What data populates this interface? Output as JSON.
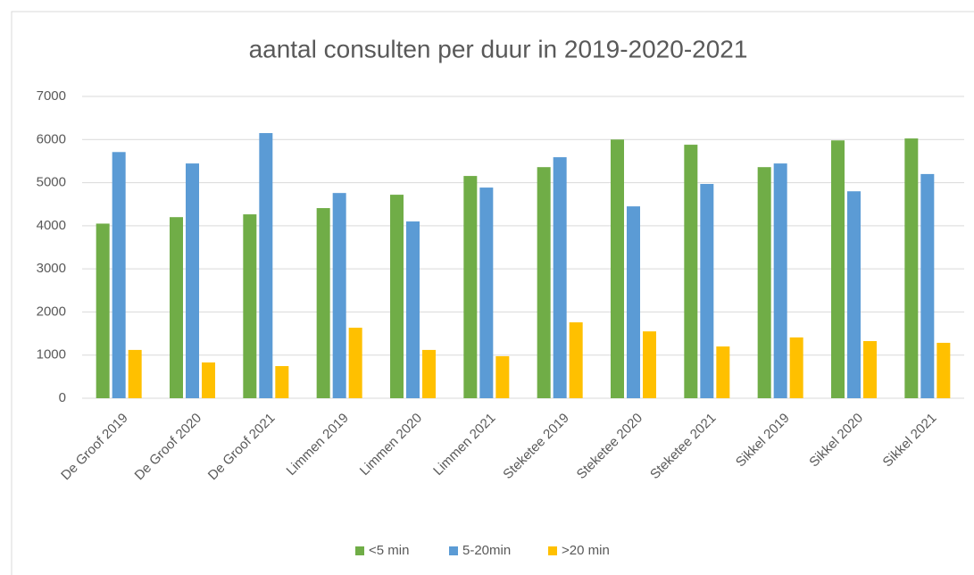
{
  "chart_data": {
    "type": "bar",
    "title": "aantal consulten per duur in 2019-2020-2021",
    "categories": [
      "De Groof 2019",
      "De Groof 2020",
      "De Groof 2021",
      "Limmen 2019",
      "Limmen 2020",
      "Limmen 2021",
      "Steketee 2019",
      "Steketee 2020",
      "Steketee 2021",
      "Sikkel 2019",
      "Sikkel 2020",
      "Sikkel 2021"
    ],
    "series": [
      {
        "name": "<5 min",
        "color": "#70ad47",
        "values": [
          4050,
          4200,
          4265,
          4410,
          4720,
          5155,
          5360,
          6000,
          5880,
          5360,
          5980,
          6025
        ]
      },
      {
        "name": "5-20min",
        "color": "#5b9bd5",
        "values": [
          5710,
          5445,
          6150,
          4760,
          4100,
          4886,
          5590,
          4450,
          4970,
          5445,
          4800,
          5200
        ]
      },
      {
        "name": ">20 min",
        "color": "#ffc000",
        "values": [
          1120,
          830,
          745,
          1635,
          1120,
          975,
          1760,
          1550,
          1200,
          1410,
          1325,
          1285
        ]
      }
    ],
    "ylim": [
      0,
      7000
    ],
    "yticks": [
      0,
      1000,
      2000,
      3000,
      4000,
      5000,
      6000,
      7000
    ],
    "grid": true,
    "legend": "bottom"
  }
}
